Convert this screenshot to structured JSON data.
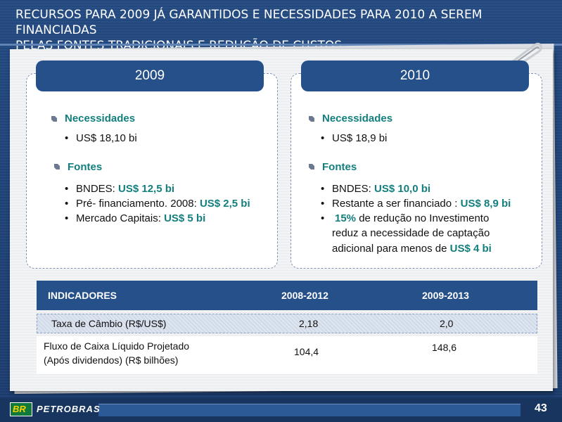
{
  "title": {
    "line1": "RECURSOS PARA 2009 JÁ GARANTIDOS E NECESSIDADES PARA 2010 A SEREM FINANCIADAS",
    "line2": "PELAS FONTES TRADICIONAIS E REDUÇÃO DE CUSTOS"
  },
  "panels": {
    "left": {
      "year": "2009",
      "necessidades_label": "Necessidades",
      "necessidades_items": [
        "US$ 18,10 bi"
      ],
      "fontes_label": "Fontes",
      "fontes_items": [
        {
          "text": "BNDES: ",
          "value": "US$ 12,5 bi"
        },
        {
          "text": "Pré- financiamento. 2008: ",
          "value": "US$ 2,5 bi"
        },
        {
          "text": "Mercado Capitais: ",
          "value": "US$ 5 bi"
        }
      ]
    },
    "right": {
      "year": "2010",
      "necessidades_label": "Necessidades",
      "necessidades_items": [
        "US$ 18,9 bi"
      ],
      "fontes_label": "Fontes",
      "fontes_items": [
        {
          "text": "BNDES: ",
          "value": "US$ 10,0 bi"
        },
        {
          "text": "Restante a ser financiado : ",
          "value": "US$ 8,9 bi"
        }
      ],
      "reducao": {
        "pct": "15%",
        "line1_rest": " de redução no Investimento",
        "line2": "reduz a necessidade de captação",
        "line3_text": "adicional para menos de ",
        "line3_value": "US$ 4 bi"
      }
    }
  },
  "table": {
    "headers": [
      "INDICADORES",
      "2008-2012",
      "2009-2013"
    ],
    "rows": [
      {
        "label": "Taxa de Câmbio (R$/US$)",
        "v1": "2,18",
        "v2": "2,0"
      },
      {
        "label_line1": "Fluxo de Caixa Líquido Projetado",
        "label_line2": "(Após dividendos) (R$ bilhões)",
        "v1": "104,4",
        "v2": "148,6"
      }
    ]
  },
  "footer": {
    "logo_br": "BR",
    "logo_text": "PETROBRAS",
    "page_number": "43"
  },
  "colors": {
    "accent_teal": "#127f7e",
    "header_blue": "#25508a"
  }
}
